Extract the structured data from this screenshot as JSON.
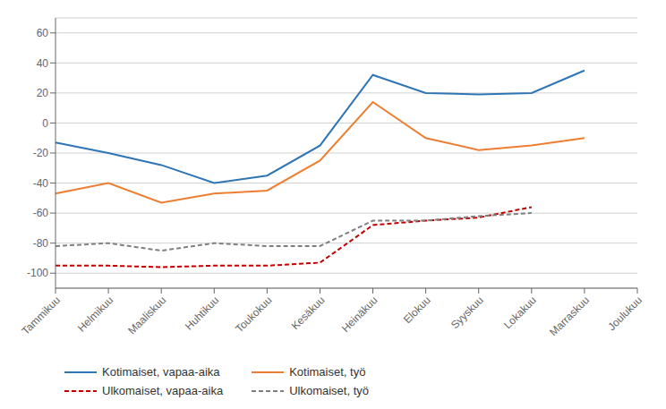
{
  "chart_data": {
    "type": "line",
    "categories": [
      "Tammikuu",
      "Helmikuu",
      "Maaliskuu",
      "Huhtikuu",
      "Toukokuu",
      "Kesäkuu",
      "Heinäkuu",
      "Elokuu",
      "Syyskuu",
      "Lokakuu",
      "Marraskuu",
      "Joulukuu"
    ],
    "series": [
      {
        "name": "Kotimaiset, vapaa-aika",
        "color": "#2E75B6",
        "line_style": "solid",
        "values": [
          -13,
          -20,
          -28,
          -40,
          -35,
          -15,
          32,
          20,
          19,
          20,
          35,
          null
        ]
      },
      {
        "name": "Kotimaiset, työ",
        "color": "#ED7D31",
        "line_style": "solid",
        "values": [
          -47,
          -40,
          -53,
          -47,
          -45,
          -25,
          14,
          -10,
          -18,
          -15,
          -10,
          null
        ]
      },
      {
        "name": "Ulkomaiset, vapaa-aika",
        "color": "#C00000",
        "line_style": "dashed",
        "values": [
          -95,
          -95,
          -96,
          -95,
          -95,
          -93,
          -68,
          -65,
          -63,
          -56,
          null,
          null
        ]
      },
      {
        "name": "Ulkomaiset, työ",
        "color": "#808080",
        "line_style": "dashed",
        "values": [
          -82,
          -80,
          -85,
          -80,
          -82,
          -82,
          -65,
          -65,
          -62,
          -60,
          null,
          null
        ]
      }
    ],
    "ylim": [
      -110,
      70
    ],
    "yticks": [
      -100,
      -80,
      -60,
      -40,
      -20,
      0,
      20,
      40,
      60
    ],
    "grid": true,
    "legend": "bottom"
  }
}
